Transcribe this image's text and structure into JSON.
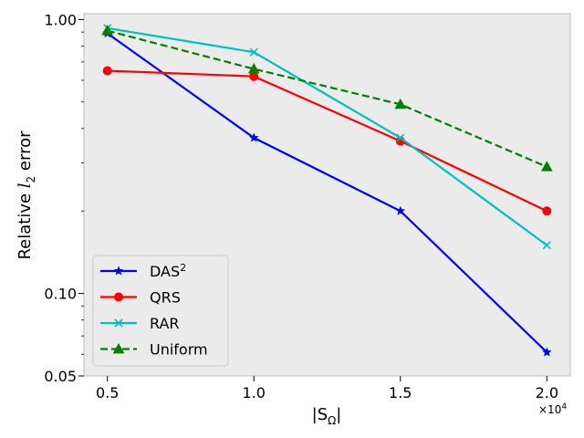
{
  "chart_data": {
    "type": "line",
    "x": [
      0.5,
      1.0,
      1.5,
      2.0
    ],
    "x_tick_labels": [
      "0.5",
      "1.0",
      "1.5",
      "2.0"
    ],
    "x_multiplier_label": "×10",
    "x_multiplier_exponent": "4",
    "xlabel_left_bar": "|",
    "xlabel_s": "S",
    "xlabel_sub": "Ω",
    "xlabel_right_bar": "|",
    "ylabel_prefix": "Relative ",
    "ylabel_l": "l",
    "ylabel_sub": "2",
    "ylabel_suffix": " error",
    "yscale": "log",
    "ylim": [
      0.05,
      1.05
    ],
    "y_ticks": [
      0.05,
      0.1,
      1.0
    ],
    "y_tick_labels": [
      "0.05",
      "0.10",
      "1.00"
    ],
    "xlim": [
      0.42,
      2.08
    ],
    "grid": false,
    "legend_position": "lower-left",
    "series": [
      {
        "name": "DAS",
        "name_sup": "2",
        "color": "#0000ff",
        "marker": "star",
        "dash": "solid",
        "values": [
          0.89,
          0.37,
          0.2,
          0.061
        ]
      },
      {
        "name": "QRS",
        "name_sup": "",
        "color": "#ff0000",
        "marker": "circle",
        "dash": "solid",
        "values": [
          0.65,
          0.62,
          0.36,
          0.2
        ]
      },
      {
        "name": "RAR",
        "name_sup": "",
        "color": "#00bfbf",
        "marker": "x",
        "dash": "solid",
        "values": [
          0.93,
          0.76,
          0.37,
          0.15
        ]
      },
      {
        "name": "Uniform",
        "name_sup": "",
        "color": "#008000",
        "marker": "triangle",
        "dash": "dashed",
        "values": [
          0.91,
          0.66,
          0.49,
          0.29
        ]
      }
    ]
  }
}
